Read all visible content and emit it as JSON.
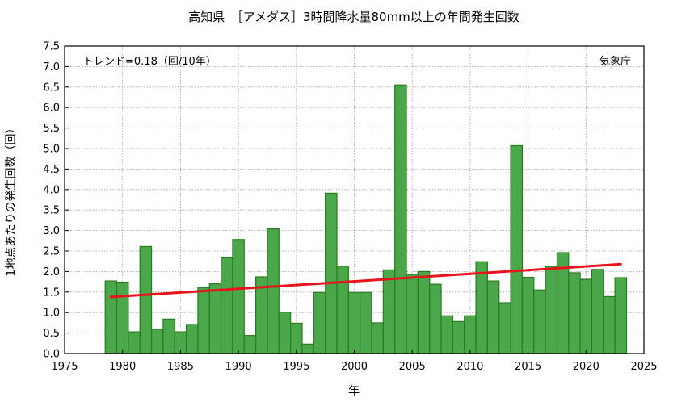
{
  "chart_data": {
    "type": "bar",
    "title": "高知県　［アメダス］3時間降水量80mm以上の年間発生回数",
    "xlabel": "年",
    "ylabel": "1地点あたりの発生回数（回）",
    "trend_label": "トレンド=0.18（回/10年）",
    "source_label": "気象庁",
    "xlim": [
      1975,
      2025
    ],
    "ylim": [
      0,
      7.5
    ],
    "xticks": [
      "1975",
      "1980",
      "1985",
      "1990",
      "1995",
      "2000",
      "2005",
      "2010",
      "2015",
      "2020",
      "2025"
    ],
    "yticks": [
      "0.0",
      "0.5",
      "1.0",
      "1.5",
      "2.0",
      "2.5",
      "3.0",
      "3.5",
      "4.0",
      "4.5",
      "5.0",
      "5.5",
      "6.0",
      "6.5",
      "7.0",
      "7.5"
    ],
    "grid": true,
    "bar_color": "#4aa84a",
    "bar_edge_color": "#2a7a1e",
    "trend_color": "#e8141b",
    "x": [
      1979,
      1980,
      1981,
      1982,
      1983,
      1984,
      1985,
      1986,
      1987,
      1988,
      1989,
      1990,
      1991,
      1992,
      1993,
      1994,
      1995,
      1996,
      1997,
      1998,
      1999,
      2000,
      2001,
      2002,
      2003,
      2004,
      2005,
      2006,
      2007,
      2008,
      2009,
      2010,
      2011,
      2012,
      2013,
      2014,
      2015,
      2016,
      2017,
      2018,
      2019,
      2020,
      2021,
      2022,
      2023
    ],
    "values": [
      1.77,
      1.74,
      0.53,
      2.61,
      0.59,
      0.84,
      0.53,
      0.71,
      1.61,
      1.7,
      2.35,
      2.78,
      0.44,
      1.87,
      3.04,
      1.01,
      0.74,
      0.23,
      1.49,
      3.91,
      2.13,
      1.49,
      1.49,
      0.75,
      2.04,
      6.55,
      1.93,
      2.0,
      1.69,
      0.92,
      0.78,
      0.92,
      2.24,
      1.77,
      1.24,
      5.07,
      1.86,
      1.55,
      2.13,
      2.46,
      1.97,
      1.81,
      2.05,
      1.39,
      1.85
    ],
    "trend": {
      "x": [
        1979,
        2023
      ],
      "y": [
        1.38,
        2.18
      ]
    }
  }
}
